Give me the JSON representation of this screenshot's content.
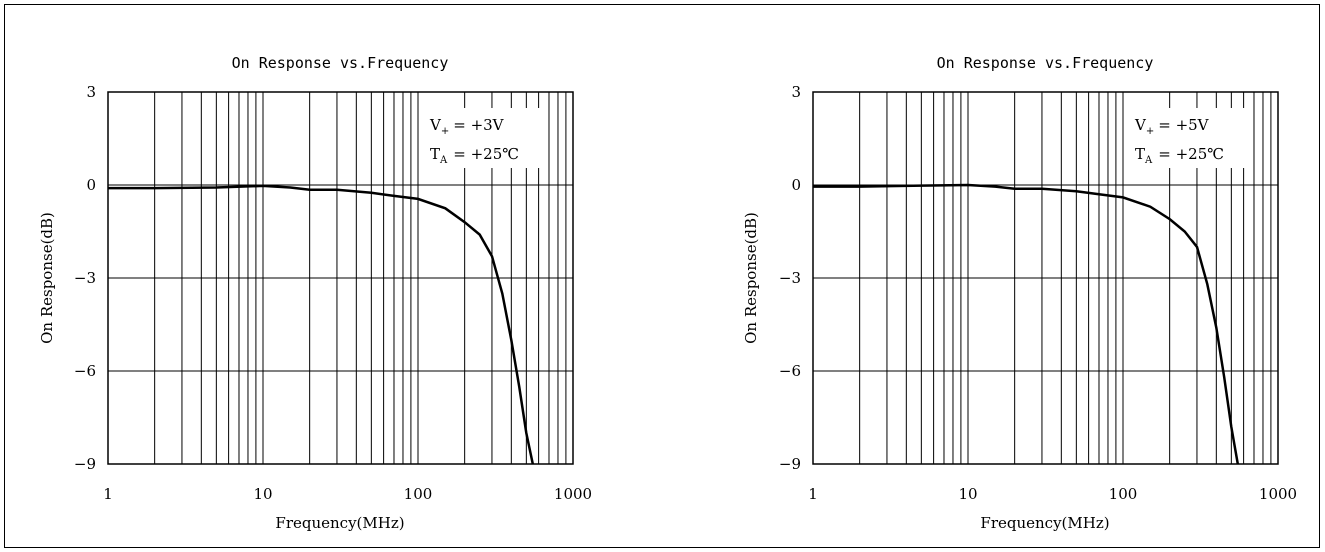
{
  "chart_data": [
    {
      "type": "line",
      "title": "On Response vs.Frequency",
      "xlabel": "Frequency(MHz)",
      "ylabel": "On Response(dB)",
      "xscale": "log",
      "xlim": [
        1,
        1000
      ],
      "ylim": [
        -9,
        3
      ],
      "x_ticks": [
        "1",
        "10",
        "100",
        "1000"
      ],
      "y_ticks": [
        "3",
        "0",
        "-3",
        "-6",
        "-9"
      ],
      "grid": true,
      "annotation": {
        "v_label": "V",
        "v_sub": "+",
        "v_value": "= +3V",
        "t_label": "T",
        "t_sub": "A",
        "t_value": "= +25℃"
      },
      "series": [
        {
          "color": "#000000",
          "x": [
            1,
            2,
            5,
            10,
            15,
            20,
            30,
            50,
            70,
            100,
            150,
            200,
            250,
            300,
            350,
            400,
            450,
            500,
            550
          ],
          "y": [
            -0.1,
            -0.1,
            -0.08,
            -0.03,
            -0.08,
            -0.15,
            -0.15,
            -0.25,
            -0.35,
            -0.45,
            -0.75,
            -1.2,
            -1.6,
            -2.3,
            -3.5,
            -5.0,
            -6.5,
            -8.0,
            -9.0
          ]
        }
      ]
    },
    {
      "type": "line",
      "title": "On Response vs.Frequency",
      "xlabel": "Frequency(MHz)",
      "ylabel": "On Response(dB)",
      "xscale": "log",
      "xlim": [
        1,
        1000
      ],
      "ylim": [
        -9,
        3
      ],
      "x_ticks": [
        "1",
        "10",
        "100",
        "1000"
      ],
      "y_ticks": [
        "3",
        "0",
        "-3",
        "-6",
        "-9"
      ],
      "grid": true,
      "annotation": {
        "v_label": "V",
        "v_sub": "+",
        "v_value": "= +5V",
        "t_label": "T",
        "t_sub": "A",
        "t_value": "= +25℃"
      },
      "series": [
        {
          "color": "#000000",
          "x": [
            1,
            2,
            5,
            10,
            15,
            20,
            30,
            50,
            70,
            100,
            150,
            200,
            250,
            300,
            350,
            400,
            450,
            500,
            550
          ],
          "y": [
            -0.05,
            -0.05,
            -0.02,
            0.0,
            -0.05,
            -0.12,
            -0.12,
            -0.2,
            -0.3,
            -0.4,
            -0.7,
            -1.1,
            -1.5,
            -2.0,
            -3.2,
            -4.6,
            -6.2,
            -7.8,
            -9.0
          ]
        }
      ]
    }
  ]
}
